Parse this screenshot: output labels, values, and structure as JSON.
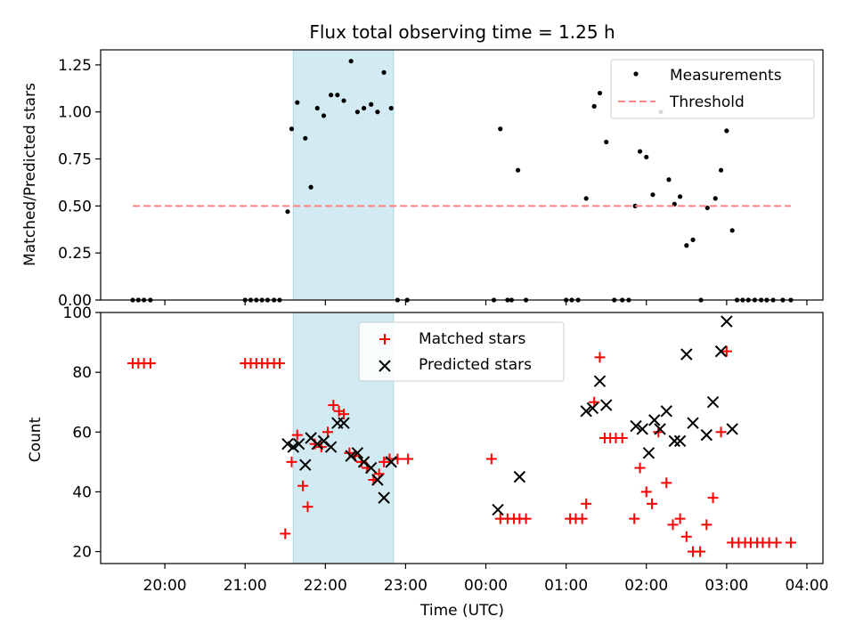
{
  "figure": {
    "title": "Flux total observing time = 1.25 h",
    "shade_color": "#add8e6",
    "xaxis": {
      "label": "Time (UTC)",
      "tick_labels": [
        "20:00",
        "21:00",
        "22:00",
        "23:00",
        "00:00",
        "01:00",
        "02:00",
        "03:00",
        "04:00"
      ],
      "tick_hours": [
        20,
        21,
        22,
        23,
        24,
        25,
        26,
        27,
        28
      ]
    }
  },
  "chart_data": [
    {
      "type": "scatter",
      "ylabel": "Matched/Predicted stars",
      "xlim_hours": [
        19.2,
        28.2
      ],
      "ylim": [
        0,
        1.33
      ],
      "yticks": [
        0.0,
        0.25,
        0.5,
        0.75,
        1.0,
        1.25
      ],
      "ytick_labels": [
        "0.00",
        "0.25",
        "0.50",
        "0.75",
        "1.00",
        "1.25"
      ],
      "shaded_interval_hours": [
        21.6,
        22.85
      ],
      "legend": {
        "placement": "upper right",
        "entries": [
          "Measurements",
          "Threshold"
        ]
      },
      "series": [
        {
          "name": "Measurements",
          "marker": "dot",
          "color": "#000000",
          "x_hours": [
            19.6,
            19.67,
            19.74,
            19.82,
            21.0,
            21.07,
            21.14,
            21.21,
            21.28,
            21.36,
            21.43,
            21.53,
            21.58,
            21.65,
            21.75,
            21.82,
            21.9,
            21.98,
            22.07,
            22.15,
            22.23,
            22.32,
            22.4,
            22.48,
            22.57,
            22.65,
            22.73,
            22.82,
            22.9,
            23.02,
            24.1,
            24.18,
            24.27,
            24.32,
            24.4,
            24.5,
            25.0,
            25.07,
            25.15,
            25.25,
            25.35,
            25.42,
            25.5,
            25.6,
            25.7,
            25.78,
            25.86,
            25.92,
            26.0,
            26.08,
            26.18,
            26.28,
            26.35,
            26.42,
            26.5,
            26.58,
            26.68,
            26.76,
            26.86,
            26.93,
            27.0,
            27.07,
            27.13,
            27.2,
            27.27,
            27.35,
            27.43,
            27.5,
            27.58,
            27.7,
            27.8
          ],
          "y": [
            0,
            0,
            0,
            0,
            0,
            0,
            0,
            0,
            0,
            0,
            0,
            0.47,
            0.91,
            1.05,
            0.86,
            0.6,
            1.02,
            0.98,
            1.09,
            1.09,
            1.06,
            1.27,
            1.0,
            1.02,
            1.04,
            1.0,
            1.21,
            1.02,
            0,
            0,
            0,
            0.91,
            0,
            0,
            0.69,
            0,
            0,
            0,
            0,
            0.54,
            1.03,
            1.1,
            0.84,
            0,
            0,
            0,
            0.5,
            0.79,
            0.76,
            0.56,
            1.0,
            0.64,
            0.51,
            0.55,
            0.29,
            0.32,
            0,
            0.49,
            0.54,
            0.69,
            0.9,
            0.37,
            0,
            0,
            0,
            0,
            0,
            0,
            0,
            0,
            0
          ]
        },
        {
          "name": "Threshold",
          "style": "dashed",
          "color": "#ff8080",
          "x_hours": [
            19.6,
            27.8
          ],
          "y": [
            0.5,
            0.5
          ]
        }
      ]
    },
    {
      "type": "scatter",
      "ylabel": "Count",
      "xlim_hours": [
        19.2,
        28.2
      ],
      "ylim": [
        16,
        100
      ],
      "yticks": [
        20,
        40,
        60,
        80,
        100
      ],
      "ytick_labels": [
        "20",
        "40",
        "60",
        "80",
        "100"
      ],
      "shaded_interval_hours": [
        21.6,
        22.85
      ],
      "legend": {
        "placement": "upper center",
        "entries": [
          "Matched stars",
          "Predicted stars"
        ]
      },
      "series": [
        {
          "name": "Matched stars",
          "marker": "plus",
          "color": "#ff0000",
          "x_hours": [
            19.6,
            19.67,
            19.74,
            19.82,
            21.0,
            21.07,
            21.14,
            21.21,
            21.28,
            21.36,
            21.43,
            21.5,
            21.58,
            21.65,
            21.72,
            21.78,
            21.87,
            21.95,
            22.03,
            22.1,
            22.17,
            22.23,
            22.3,
            22.37,
            22.45,
            22.52,
            22.6,
            22.67,
            22.73,
            22.8,
            22.9,
            23.03,
            24.07,
            24.18,
            24.27,
            24.35,
            24.42,
            24.5,
            25.05,
            25.12,
            25.2,
            25.25,
            25.35,
            25.42,
            25.48,
            25.55,
            25.62,
            25.7,
            25.85,
            25.92,
            26.0,
            26.07,
            26.15,
            26.25,
            26.33,
            26.42,
            26.5,
            26.58,
            26.67,
            26.75,
            26.83,
            26.93,
            27.0,
            27.07,
            27.15,
            27.23,
            27.3,
            27.38,
            27.45,
            27.53,
            27.62,
            27.8
          ],
          "y": [
            83,
            83,
            83,
            83,
            83,
            83,
            83,
            83,
            83,
            83,
            83,
            26,
            50,
            59,
            42,
            35,
            56,
            55,
            60,
            69,
            67,
            66,
            53,
            52,
            50,
            48,
            44,
            46,
            50,
            51,
            51,
            51,
            51,
            31,
            31,
            31,
            31,
            31,
            31,
            31,
            31,
            36,
            70,
            85,
            58,
            58,
            58,
            58,
            31,
            48,
            40,
            36,
            60,
            43,
            29,
            31,
            25,
            20,
            20,
            29,
            38,
            60,
            87,
            23,
            23,
            23,
            23,
            23,
            23,
            23,
            23,
            23
          ]
        },
        {
          "name": "Predicted stars",
          "marker": "x",
          "color": "#000000",
          "x_hours": [
            21.53,
            21.6,
            21.67,
            21.75,
            21.82,
            21.9,
            21.98,
            22.07,
            22.15,
            22.23,
            22.32,
            22.4,
            22.48,
            22.57,
            22.65,
            22.73,
            22.82,
            24.15,
            24.42,
            25.25,
            25.33,
            25.42,
            25.5,
            25.87,
            25.95,
            26.03,
            26.1,
            26.17,
            26.25,
            26.35,
            26.42,
            26.5,
            26.58,
            26.75,
            26.83,
            26.93,
            27.0,
            27.07
          ],
          "y": [
            56,
            55,
            56,
            49,
            58,
            56,
            57,
            55,
            63,
            63,
            52,
            53,
            50,
            48,
            44,
            38,
            50,
            34,
            45,
            67,
            68,
            77,
            69,
            62,
            61,
            53,
            64,
            61,
            67,
            57,
            57,
            86,
            63,
            59,
            70,
            87,
            97,
            61
          ]
        }
      ]
    }
  ]
}
